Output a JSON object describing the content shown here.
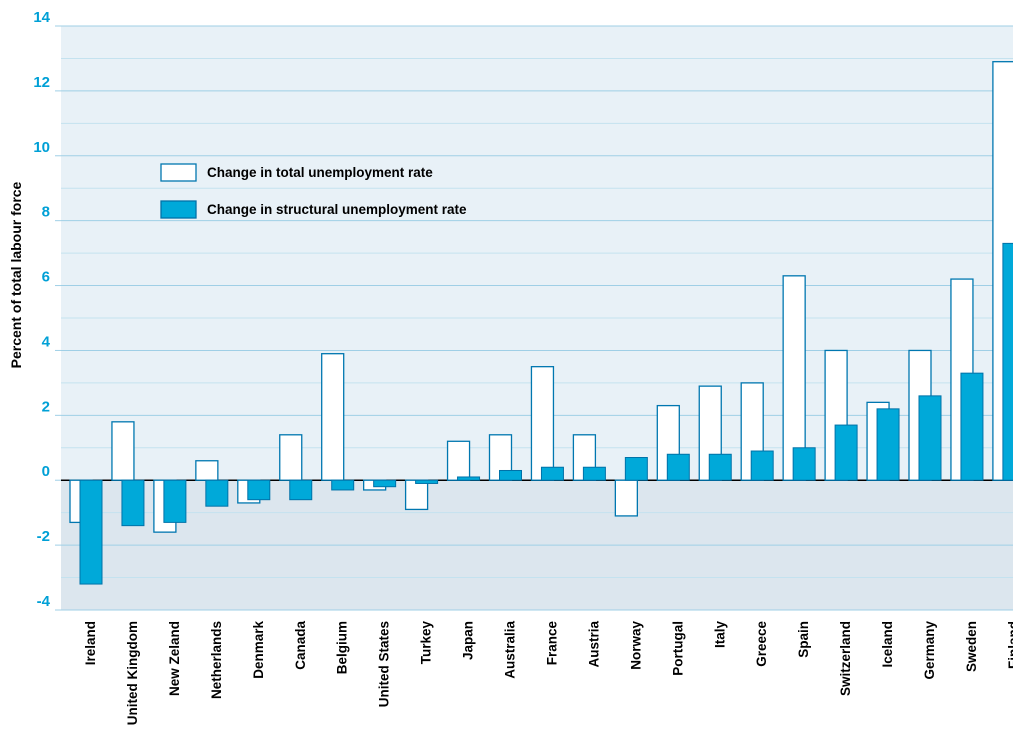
{
  "chart_data": {
    "type": "bar",
    "title": "",
    "xlabel": "",
    "ylabel": "Percent of total labour force",
    "ylim": [
      -4,
      14
    ],
    "y_ticks": [
      -4,
      -2,
      0,
      2,
      4,
      6,
      8,
      10,
      12,
      14
    ],
    "grid": true,
    "legend_position": "upper-left",
    "categories": [
      "Ireland",
      "United Kingdom",
      "New Zeland",
      "Netherlands",
      "Denmark",
      "Canada",
      "Belgium",
      "United States",
      "Turkey",
      "Japan",
      "Australia",
      "France",
      "Austria",
      "Norway",
      "Portugal",
      "Italy",
      "Greece",
      "Spain",
      "Switzerland",
      "Iceland",
      "Germany",
      "Sweden",
      "Finland"
    ],
    "series": [
      {
        "name": "Change in total unemployment rate",
        "style": "outline",
        "values": [
          -1.3,
          1.8,
          -1.6,
          0.6,
          -0.7,
          1.4,
          3.9,
          -0.3,
          -0.9,
          1.2,
          1.4,
          3.5,
          1.4,
          -1.1,
          2.3,
          2.9,
          3.0,
          6.3,
          4.0,
          2.4,
          4.0,
          6.2,
          12.9
        ]
      },
      {
        "name": "Change in structural unemployment rate",
        "style": "filled",
        "values": [
          -3.2,
          -1.4,
          -1.3,
          -0.8,
          -0.6,
          -0.6,
          -0.3,
          -0.2,
          -0.1,
          0.1,
          0.3,
          0.4,
          0.4,
          0.7,
          0.8,
          0.8,
          0.9,
          1.0,
          1.7,
          2.2,
          2.6,
          3.3,
          7.3
        ]
      }
    ]
  },
  "colors": {
    "accent": "#00a0d6",
    "bar_fill": "#00a9d9",
    "bar_stroke": "#0072a8",
    "outline": "#0077b0",
    "plot_bg_negative": "#dce6ee",
    "grid": "#a8d4e8",
    "tick_label": "#00a0d6",
    "text": "#000000"
  }
}
